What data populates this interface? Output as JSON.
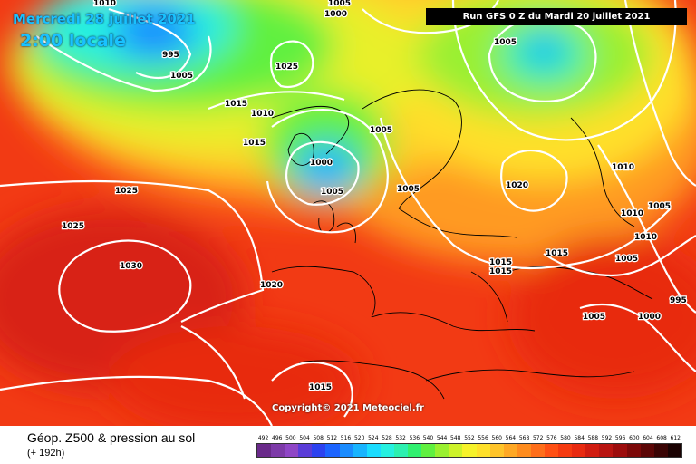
{
  "header": {
    "date": "Mercredi 28 juillet 2021",
    "time": "2:00 locale",
    "run": "Run GFS 0 Z du Mardi 20 juillet 2021"
  },
  "copyright": "Copyright© 2021 Meteociel.fr",
  "footer": {
    "title": "Géop. Z500 & pression au sol",
    "subtitle": "(+ 192h)"
  },
  "scale": {
    "labels": [
      "492",
      "496",
      "500",
      "504",
      "508",
      "512",
      "516",
      "520",
      "524",
      "528",
      "532",
      "536",
      "540",
      "544",
      "548",
      "552",
      "556",
      "560",
      "564",
      "568",
      "572",
      "576",
      "580",
      "584",
      "588",
      "592",
      "596",
      "600",
      "604",
      "608",
      "612"
    ],
    "colors": [
      "#6a2a8a",
      "#7d3aa8",
      "#8f46c6",
      "#5a3cd8",
      "#2c42f0",
      "#1c64ff",
      "#1a8cff",
      "#18b4ff",
      "#1adcff",
      "#25f0e0",
      "#2cf0b0",
      "#30f070",
      "#60f040",
      "#9af030",
      "#cdf22a",
      "#f6f22a",
      "#ffe02a",
      "#ffc42a",
      "#ffa824",
      "#ff8c1e",
      "#ff6e1a",
      "#ff5014",
      "#f53a10",
      "#e82a10",
      "#d01c10",
      "#b81410",
      "#9c0c0c",
      "#7c0808",
      "#5c0606",
      "#3a0404",
      "#1a0202"
    ]
  },
  "isobars": [
    "1010",
    "1000",
    "995",
    "1005",
    "1025",
    "1015",
    "1010",
    "1015",
    "1005",
    "1000",
    "1005",
    "1005",
    "1010",
    "1020",
    "1025",
    "1025",
    "1030",
    "1020",
    "1005",
    "1015",
    "1015",
    "1010",
    "1005",
    "1010",
    "1005",
    "995",
    "1000",
    "1005",
    "1015",
    "1015",
    "1005"
  ],
  "icons": {
    "map": "weather-map-image"
  }
}
